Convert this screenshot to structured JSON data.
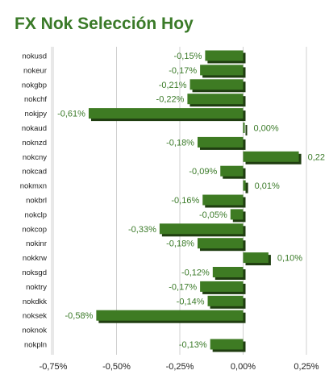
{
  "title": "FX Nok Selección Hoy",
  "colors": {
    "bar_front": "#3e7b23",
    "bar_shadow": "#1f3d10",
    "label": "#3a7a28",
    "grid": "#d0d0d0"
  },
  "chart_data": {
    "type": "bar",
    "orientation": "horizontal",
    "title": "FX Nok Selección Hoy",
    "categories": [
      "nokusd",
      "nokeur",
      "nokgbp",
      "nokchf",
      "nokjpy",
      "nokaud",
      "noknzd",
      "nokcny",
      "nokcad",
      "nokmxn",
      "nokbrl",
      "nokclp",
      "nokcop",
      "nokinr",
      "nokkrw",
      "noksgd",
      "noktry",
      "nokdkk",
      "noksek",
      "noknok",
      "nokpln"
    ],
    "values": [
      -0.15,
      -0.17,
      -0.21,
      -0.22,
      -0.61,
      0.0,
      -0.18,
      0.22,
      -0.09,
      0.01,
      -0.16,
      -0.05,
      -0.33,
      -0.18,
      0.1,
      -0.12,
      -0.17,
      -0.14,
      -0.58,
      null,
      -0.13
    ],
    "data_labels": [
      "-0,15%",
      "-0,17%",
      "-0,21%",
      "-0,22%",
      "-0,61%",
      "0,00%",
      "-0,18%",
      "0,22",
      "-0,09%",
      "0,01%",
      "-0,16%",
      "-0,05%",
      "-0,33%",
      "-0,18%",
      "0,10%",
      "-0,12%",
      "-0,17%",
      "-0,14%",
      "-0,58%",
      "",
      "-0,13%"
    ],
    "x_ticks": [
      -0.75,
      -0.5,
      -0.25,
      0,
      0.25
    ],
    "x_tick_labels": [
      "-0,75%",
      "-0,50%",
      "-0,25%",
      "0,00%",
      "0,25%"
    ],
    "xlim": [
      -0.75,
      0.25
    ],
    "grid": true,
    "legend": false
  }
}
